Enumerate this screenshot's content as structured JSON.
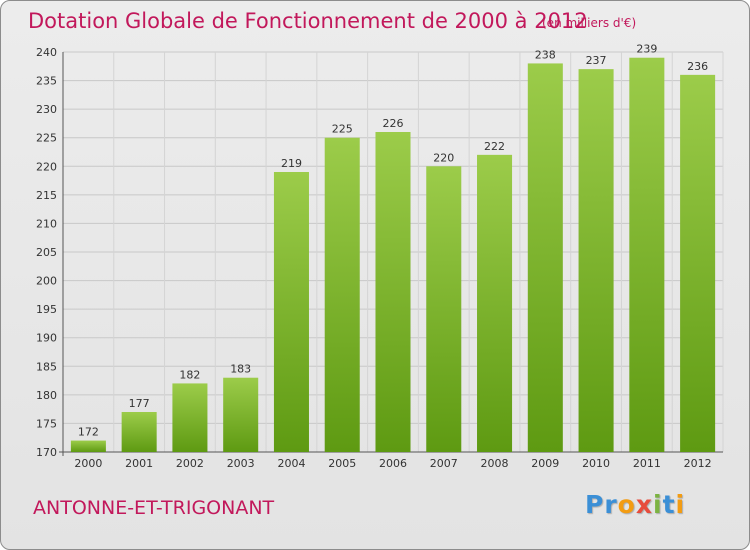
{
  "header": {
    "title": "Dotation Globale de Fonctionnement de 2000 à 2012",
    "subtitle": "(en milliers d'€)"
  },
  "footer": {
    "commune": "ANTONNE-ET-TRIGONANT",
    "logo": [
      "P",
      "r",
      "o",
      "x",
      "i",
      "t",
      "i"
    ],
    "logo_colors": [
      "#3b8fd6",
      "#3b8fd6",
      "#f39c12",
      "#e74c3c",
      "#7cb342",
      "#3b8fd6",
      "#f39c12"
    ]
  },
  "chart_data": {
    "type": "bar",
    "categories": [
      "2000",
      "2001",
      "2002",
      "2003",
      "2004",
      "2005",
      "2006",
      "2007",
      "2008",
      "2009",
      "2010",
      "2011",
      "2012"
    ],
    "values": [
      172,
      177,
      182,
      183,
      219,
      225,
      226,
      220,
      222,
      238,
      237,
      239,
      236
    ],
    "ylim": [
      170,
      240
    ],
    "yticks": [
      170,
      175,
      180,
      185,
      190,
      195,
      200,
      205,
      210,
      215,
      220,
      225,
      230,
      235,
      240
    ],
    "grid": true,
    "bar_color_top": "#9ccc4a",
    "bar_color_bottom": "#5e9a12"
  }
}
